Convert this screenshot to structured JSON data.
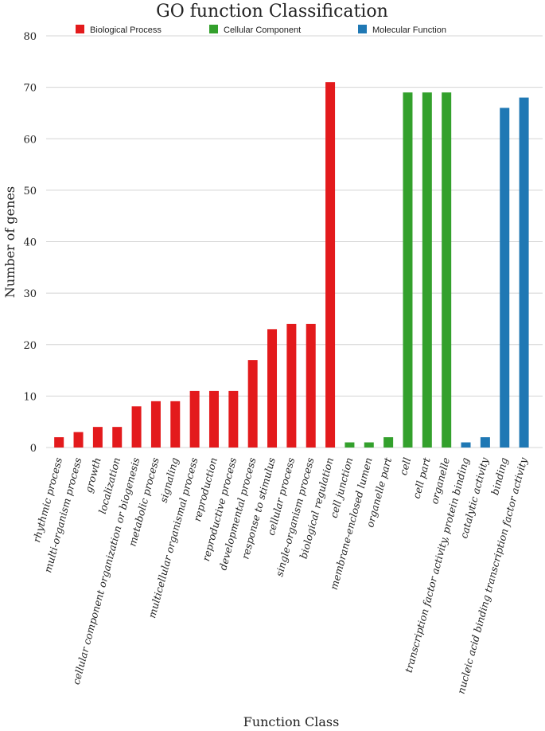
{
  "chart_data": {
    "type": "bar",
    "title": "GO function Classification",
    "xlabel": "Function Class",
    "ylabel": "Number of genes",
    "ylim": [
      0,
      80
    ],
    "yticks": [
      0,
      10,
      20,
      30,
      40,
      50,
      60,
      70,
      80
    ],
    "grid": true,
    "legend_position": "top",
    "series": [
      {
        "name": "Biological Process",
        "color": "#e31a1c"
      },
      {
        "name": "Cellular Component",
        "color": "#33a02c"
      },
      {
        "name": "Molecular Function",
        "color": "#1f78b4"
      }
    ],
    "categories": [
      "rhythmic process",
      "multi-organism process",
      "growth",
      "localization",
      "cellular component organization or biogenesis",
      "metabolic process",
      "signaling",
      "multicellular organismal process",
      "reproduction",
      "reproductive process",
      "developmental process",
      "response to stimulus",
      "cellular process",
      "single-organism process",
      "biological regulation",
      "cell junction",
      "membrane-enclosed lumen",
      "organelle part",
      "cell",
      "cell part",
      "organelle",
      "transcription factor activity, protein binding",
      "catalytic activity",
      "binding",
      "nucleic acid binding transcription factor activity"
    ],
    "values": [
      2,
      3,
      4,
      4,
      8,
      9,
      9,
      11,
      11,
      11,
      17,
      23,
      24,
      24,
      71,
      1,
      1,
      2,
      69,
      69,
      69,
      1,
      2,
      66,
      68
    ],
    "category_series": [
      0,
      0,
      0,
      0,
      0,
      0,
      0,
      0,
      0,
      0,
      0,
      0,
      0,
      0,
      0,
      1,
      1,
      1,
      1,
      1,
      1,
      2,
      2,
      2,
      2
    ]
  }
}
